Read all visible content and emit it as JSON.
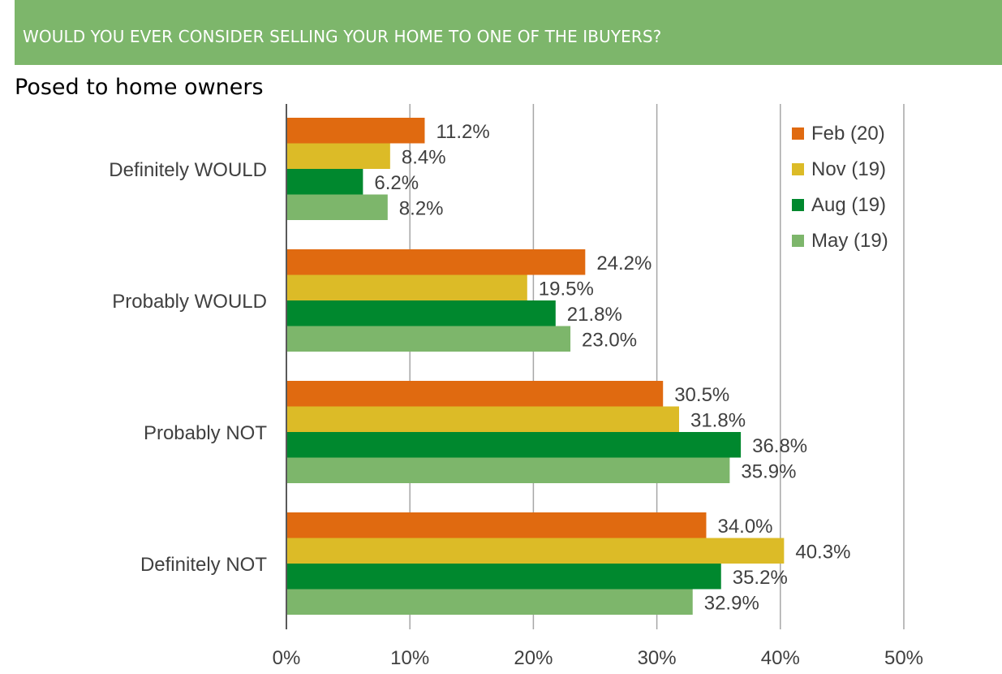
{
  "header": {
    "title": "WOULD YOU EVER CONSIDER SELLING YOUR HOME TO ONE OF THE IBUYERS?",
    "subtitle": "Posed to home owners"
  },
  "colors": {
    "banner": "#7db66b",
    "Feb (20)": "#e06a10",
    "Nov (19)": "#dcbb27",
    "Aug (19)": "#00882e",
    "May (19)": "#7db66b"
  },
  "chart_data": {
    "type": "bar",
    "orientation": "horizontal",
    "categories": [
      "Definitely WOULD",
      "Probably WOULD",
      "Probably NOT",
      "Definitely NOT"
    ],
    "series": [
      {
        "name": "Feb (20)",
        "values": [
          11.2,
          24.2,
          30.5,
          34.0
        ],
        "labels": [
          "11.2%",
          "24.2%",
          "30.5%",
          "34.0%"
        ]
      },
      {
        "name": "Nov (19)",
        "values": [
          8.4,
          19.5,
          31.8,
          40.3
        ],
        "labels": [
          "8.4%",
          "19.5%",
          "31.8%",
          "40.3%"
        ]
      },
      {
        "name": "Aug (19)",
        "values": [
          6.2,
          21.8,
          36.8,
          35.2
        ],
        "labels": [
          "6.2%",
          "21.8%",
          "36.8%",
          "35.2%"
        ]
      },
      {
        "name": "May (19)",
        "values": [
          8.2,
          23.0,
          35.9,
          32.9
        ],
        "labels": [
          "8.2%",
          "23.0%",
          "35.9%",
          "32.9%"
        ]
      }
    ],
    "xlim": [
      0,
      50
    ],
    "xticks": [
      "0%",
      "10%",
      "20%",
      "30%",
      "40%",
      "50%"
    ],
    "grid": true,
    "legend": "top-right"
  }
}
